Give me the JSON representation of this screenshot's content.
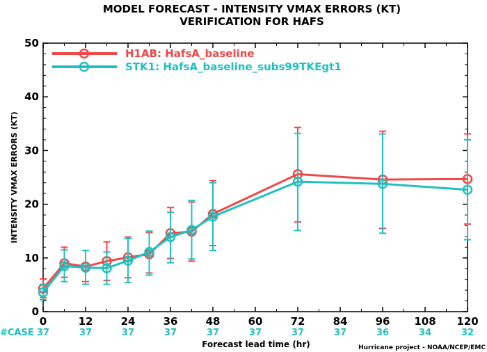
{
  "chart_data": {
    "type": "line",
    "title": "MODEL FORECAST - INTENSITY VMAX ERRORS (KT)",
    "subtitle": "VERIFICATION FOR HAFS",
    "xlabel": "Forecast lead time (hr)",
    "ylabel": "INTENSITY VMAX ERRORS (KT)",
    "xlim": [
      0,
      120
    ],
    "ylim": [
      0,
      50
    ],
    "x_ticks": [
      0,
      12,
      24,
      36,
      48,
      60,
      72,
      84,
      96,
      108,
      120
    ],
    "y_ticks": [
      0,
      10,
      20,
      30,
      40,
      50
    ],
    "legend_position": "top-left",
    "series": [
      {
        "name": "H1AB: HafsA_baseline",
        "color": "#f04848",
        "x": [
          0,
          6,
          12,
          18,
          24,
          30,
          36,
          42,
          48,
          72,
          96,
          120
        ],
        "y": [
          4.3,
          9.0,
          8.4,
          9.4,
          10.1,
          10.7,
          14.6,
          14.9,
          18.2,
          25.6,
          24.6,
          24.7
        ],
        "err_low": [
          2.6,
          6.4,
          5.6,
          5.8,
          6.3,
          7.2,
          9.9,
          9.4,
          12.3,
          16.7,
          15.5,
          16.3
        ],
        "err_high": [
          6.1,
          12.0,
          11.4,
          13.0,
          13.9,
          14.7,
          19.4,
          20.4,
          24.4,
          34.3,
          33.6,
          33.1
        ]
      },
      {
        "name": "STK1: HafsA_baseline_subs99TKEgt1",
        "color": "#20c0c0",
        "x": [
          0,
          6,
          12,
          18,
          24,
          30,
          36,
          42,
          48,
          72,
          96,
          120
        ],
        "y": [
          3.6,
          8.5,
          8.2,
          8.1,
          9.5,
          11.1,
          13.9,
          15.2,
          17.7,
          24.2,
          23.8,
          22.7
        ],
        "err_low": [
          2.2,
          5.6,
          5.1,
          5.1,
          5.4,
          6.8,
          9.1,
          9.8,
          11.4,
          15.1,
          14.6,
          13.4
        ],
        "err_high": [
          5.1,
          11.5,
          11.4,
          11.1,
          13.6,
          15.0,
          18.5,
          20.7,
          24.0,
          33.2,
          33.1,
          32.0
        ]
      }
    ],
    "case_label": "#CASE",
    "case_x": [
      0,
      12,
      24,
      36,
      48,
      60,
      72,
      84,
      96,
      108,
      120
    ],
    "case_counts": [
      "37",
      "37",
      "37",
      "37",
      "37",
      "37",
      "37",
      "37",
      "36",
      "34",
      "32"
    ],
    "credit": "Hurricane project - NOAA/NCEP/EMC"
  }
}
